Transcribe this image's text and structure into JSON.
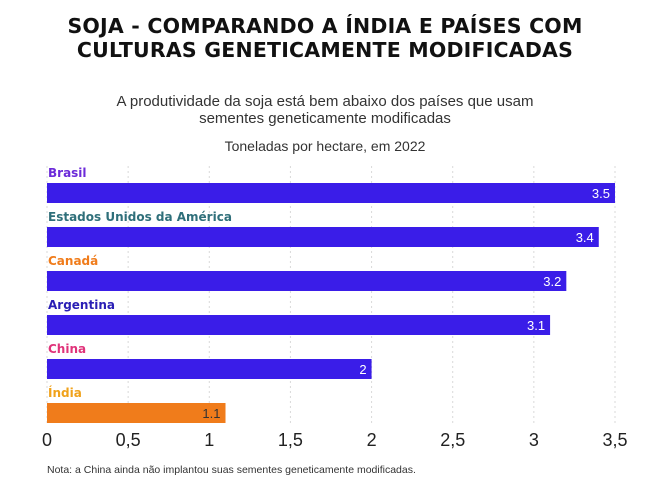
{
  "title_line1": "SOJA - COMPARANDO A ÍNDIA E PAÍSES COM",
  "title_line2": "CULTURAS GENETICAMENTE MODIFICADAS",
  "subtitle_line1": "A produtividade da soja está bem abaixo dos países que usam",
  "subtitle_line2": "sementes geneticamente modificadas",
  "units": "Toneladas por hectare, em 2022",
  "note": "Nota: a China ainda não implantou suas sementes geneticamente modificadas.",
  "colors": {
    "bar_default": "#3a1de8",
    "bar_highlight": "#f07c1b",
    "grid": "#d9d9d9",
    "axis": "#222222"
  },
  "chart_data": {
    "type": "bar",
    "orientation": "horizontal",
    "categories": [
      "Brasil",
      "Estados Unidos da América",
      "Canadá",
      "Argentina",
      "China",
      "Índia"
    ],
    "values": [
      3.5,
      3.4,
      3.2,
      3.1,
      2,
      1.1
    ],
    "value_labels": [
      "3.5",
      "3.4",
      "3.2",
      "3.1",
      "2",
      "1.1"
    ],
    "category_label_colors": [
      "#6c2bd9",
      "#2f6f7a",
      "#f07c1b",
      "#2a1fb5",
      "#e0337a",
      "#f0a21b"
    ],
    "highlight_category": "Índia",
    "xlim": [
      0,
      3.5
    ],
    "x_ticks": [
      0,
      0.5,
      1,
      1.5,
      2,
      2.5,
      3,
      3.5
    ],
    "x_tick_labels": [
      "0",
      "0,5",
      "1",
      "1,5",
      "2",
      "2,5",
      "3",
      "3,5"
    ],
    "grid": true
  }
}
